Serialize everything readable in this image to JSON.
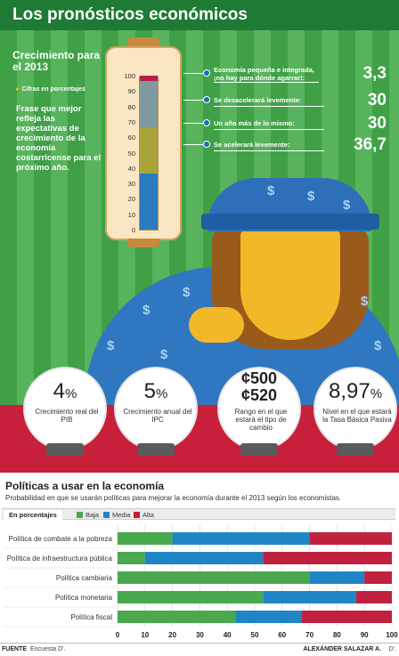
{
  "header": {
    "title": "Los pronósticos económicos"
  },
  "thermometer": {
    "title": "Crecimiento para el 2013",
    "units_note": "Cifras en porcentajes",
    "question": "Frase que mejor refleja las expectativas de crecimiento de la economía costarricense para el próximo año.",
    "ticks": [
      "100",
      "90",
      "80",
      "70",
      "60",
      "50",
      "40",
      "30",
      "20",
      "10",
      "0"
    ],
    "segments": [
      {
        "value": 36.7,
        "color": "#2a7bbf"
      },
      {
        "value": 30,
        "color": "#a9a43a"
      },
      {
        "value": 30,
        "color": "#7f9a9f"
      },
      {
        "value": 3.3,
        "color": "#b3214b"
      }
    ],
    "answers": [
      {
        "label": "Economía pequeña e integrada, ¡no hay para dónde agarrar!:",
        "value": "3,3"
      },
      {
        "label": "Se desacelerará levemente:",
        "value": "30"
      },
      {
        "label": "Un año más de lo mismo:",
        "value": "30"
      },
      {
        "label": "Se acelerará levemente:",
        "value": "36,7"
      }
    ]
  },
  "forecasts": [
    {
      "value": "4",
      "unit": "%",
      "caption": "Crecimiento real del PIB"
    },
    {
      "value": "5",
      "unit": "%",
      "caption": "Crecimiento anual del IPC"
    },
    {
      "value": "¢500 ¢520",
      "unit": "",
      "caption": "Rango en el que estará el tipo de cambio"
    },
    {
      "value": "8,97",
      "unit": "%",
      "caption": "Nivel en el que estará la Tasa Básica Pasiva"
    }
  ],
  "policies": {
    "title": "Políticas a usar en la economía",
    "subtitle": "Probabilidad en que se usarán políticas para mejorar la economía durante el 2013 según los economistas.",
    "units_label": "En porcentajes",
    "legend": [
      "Baja",
      "Media",
      "Alta"
    ]
  },
  "chart_data": {
    "type": "bar",
    "orientation": "horizontal",
    "stacked": true,
    "categories": [
      "Política de combate a la pobreza",
      "Política de infraestructura pública",
      "Política cambiaria",
      "Política monetaria",
      "Política fiscal"
    ],
    "series": [
      {
        "name": "Baja",
        "color": "#4aa84e",
        "values": [
          20,
          10,
          70,
          53,
          43
        ]
      },
      {
        "name": "Media",
        "color": "#1f86c6",
        "values": [
          50,
          43,
          20,
          34,
          24
        ]
      },
      {
        "name": "Alta",
        "color": "#c0213f",
        "values": [
          30,
          47,
          10,
          13,
          33
        ]
      }
    ],
    "xlim": [
      0,
      100
    ],
    "xticks": [
      "0",
      "10",
      "20",
      "30",
      "40",
      "50",
      "60",
      "70",
      "80",
      "90",
      "100"
    ],
    "grid": true
  },
  "footer": {
    "source_label": "FUENTE",
    "source": "Encuesta D'.",
    "author": "ALEXÁNDER SALAZAR A.",
    "logo": "D'."
  }
}
